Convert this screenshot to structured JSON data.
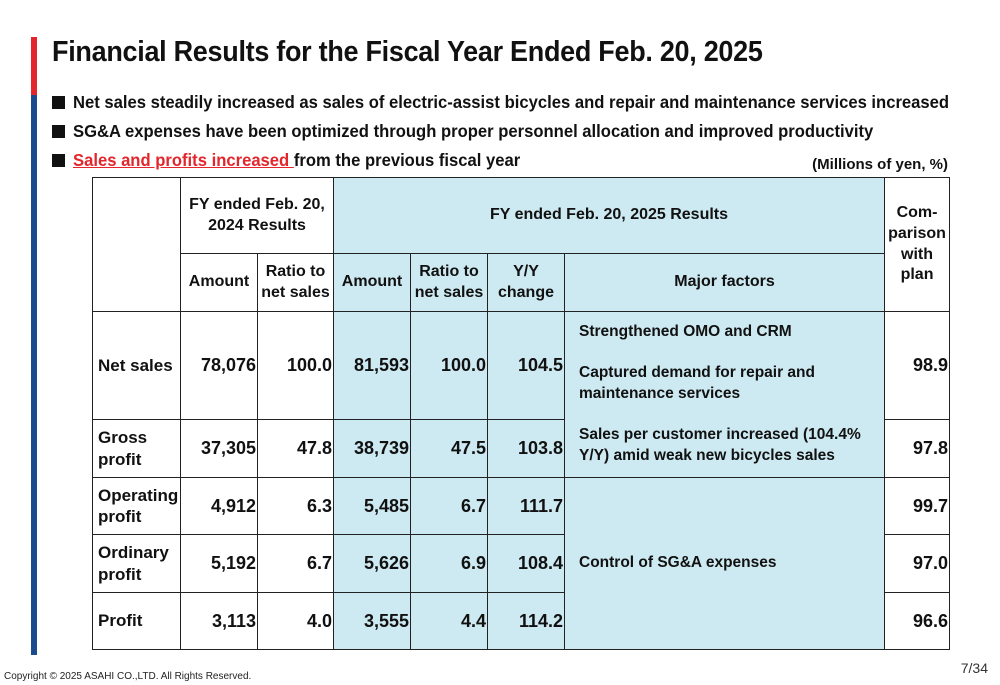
{
  "title": "Financial Results for the Fiscal Year Ended Feb. 20, 2025",
  "bullets": [
    {
      "text": "Net sales steadily increased as sales of electric-assist bicycles and repair and maintenance services increased"
    },
    {
      "text": "SG&A expenses have been optimized through proper personnel allocation and improved productivity"
    },
    {
      "highlight": "Sales and profits increased ",
      "rest": "from the previous fiscal year"
    }
  ],
  "units": "(Millions of yen, %)",
  "table": {
    "header": {
      "fy2024": "FY ended Feb. 20, 2024 Results",
      "fy2025": "FY ended Feb. 20, 2025 Results",
      "comparison": "Com-parison with plan",
      "amount": "Amount",
      "ratio": "Ratio to net sales",
      "yoy": "Y/Y change",
      "factors": "Major factors"
    },
    "rows": [
      {
        "label": "Net sales",
        "amt_2024": "78,076",
        "ratio_2024": "100.0",
        "amt_2025": "81,593",
        "ratio_2025": "100.0",
        "yoy": "104.5",
        "comparison": "98.9"
      },
      {
        "label": "Gross profit",
        "amt_2024": "37,305",
        "ratio_2024": "47.8",
        "amt_2025": "38,739",
        "ratio_2025": "47.5",
        "yoy": "103.8",
        "comparison": "97.8"
      },
      {
        "label": "Operating profit",
        "amt_2024": "4,912",
        "ratio_2024": "6.3",
        "amt_2025": "5,485",
        "ratio_2025": "6.7",
        "yoy": "111.7",
        "comparison": "99.7"
      },
      {
        "label": "Ordinary profit",
        "amt_2024": "5,192",
        "ratio_2024": "6.7",
        "amt_2025": "5,626",
        "ratio_2025": "6.9",
        "yoy": "108.4",
        "comparison": "97.0"
      },
      {
        "label": "Profit",
        "amt_2024": "3,113",
        "ratio_2024": "4.0",
        "amt_2025": "3,555",
        "ratio_2025": "4.4",
        "yoy": "114.2",
        "comparison": "96.6"
      }
    ],
    "factors_sales": [
      "Strengthened OMO and CRM",
      "Captured demand for repair and maintenance services",
      "Sales per customer increased (104.4% Y/Y) amid weak new bicycles sales"
    ],
    "factors_profit": "Control of SG&A expenses"
  },
  "footer": {
    "copyright": "Copyright © 2025 ASAHI CO.,LTD. All Rights Reserved.",
    "page": "7/34"
  },
  "colors": {
    "accent_red": "#e3262c",
    "accent_blue": "#1a4b8c",
    "table_highlight": "#cde9f1"
  }
}
